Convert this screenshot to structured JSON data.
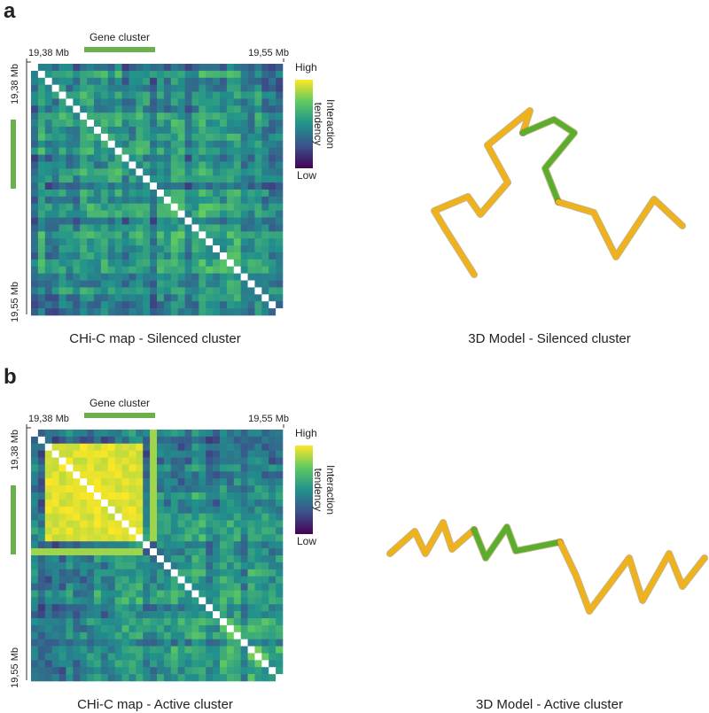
{
  "panels": [
    {
      "label": "a",
      "gene_cluster_label": "Gene cluster",
      "x_start": "19,38 Mb",
      "x_end": "19,55 Mb",
      "y_start": "19,38 Mb",
      "y_end": "19,55 Mb",
      "colorbar": {
        "high": "High",
        "title": [
          "Interaction",
          "tendency"
        ],
        "low": "Low"
      },
      "map_caption": "CHi-C map - Silenced cluster",
      "model_caption": "3D Model - Silenced cluster"
    },
    {
      "label": "b",
      "gene_cluster_label": "Gene cluster",
      "x_start": "19,38 Mb",
      "x_end": "19,55 Mb",
      "y_start": "19,38 Mb",
      "y_end": "19,55 Mb",
      "colorbar": {
        "high": "High",
        "title": [
          "Interaction",
          "tendency"
        ],
        "low": "Low"
      },
      "map_caption": "CHi-C map - Active cluster",
      "model_caption": "3D Model - Active cluster"
    }
  ]
}
